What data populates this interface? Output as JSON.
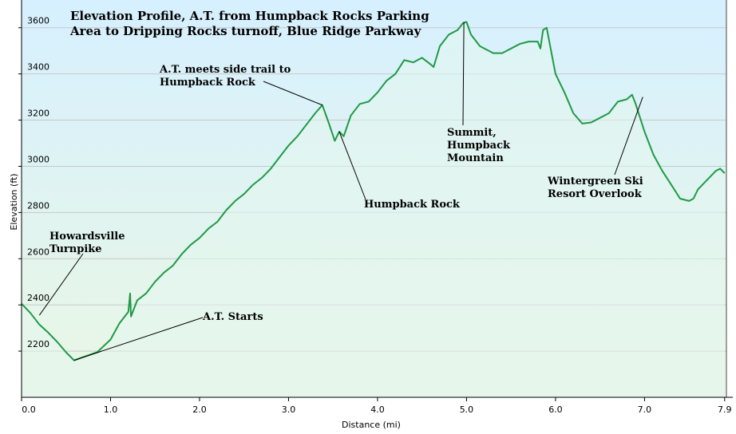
{
  "chart_data": {
    "type": "area",
    "title_lines": [
      "Elevation Profile, A.T. from Humpback Rocks Parking",
      "Area to Dripping Rocks turnoff, Blue Ridge Parkway"
    ],
    "xlabel": "Distance  (mi)",
    "ylabel": "Elevation (ft)",
    "xlim": [
      0,
      7.92
    ],
    "ylim": [
      2000,
      3720
    ],
    "x_ticks": [
      0,
      1,
      2,
      3,
      4,
      5,
      6,
      7,
      7.9
    ],
    "x_tick_labels": [
      "0.0",
      "1.0",
      "2.0",
      "3.0",
      "4.0",
      "5.0",
      "6.0",
      "7.0",
      "7.9"
    ],
    "y_ticks": [
      2200,
      2400,
      2600,
      2800,
      3000,
      3200,
      3400,
      3600
    ],
    "y_tick_labels": [
      "2200",
      "2400",
      "2600",
      "2800",
      "3000",
      "3200",
      "3400",
      "3600"
    ],
    "grid": "horizontal",
    "colors": {
      "line": "#1f9a45",
      "fill_top": "#d6f0ff",
      "fill_bottom": "#eaf7e4",
      "grid": "#c8c8c8"
    },
    "series": [
      {
        "name": "Elevation",
        "x": [
          0,
          0.1,
          0.2,
          0.3,
          0.4,
          0.5,
          0.59,
          0.7,
          0.85,
          1.0,
          1.1,
          1.2,
          1.22,
          1.23,
          1.3,
          1.4,
          1.5,
          1.6,
          1.7,
          1.8,
          1.9,
          2.0,
          2.1,
          2.2,
          2.3,
          2.4,
          2.5,
          2.6,
          2.7,
          2.8,
          2.9,
          3.0,
          3.1,
          3.2,
          3.3,
          3.38,
          3.45,
          3.52,
          3.57,
          3.62,
          3.7,
          3.8,
          3.9,
          4.0,
          4.1,
          4.2,
          4.3,
          4.4,
          4.5,
          4.6,
          4.63,
          4.7,
          4.8,
          4.9,
          4.96,
          5.0,
          5.05,
          5.15,
          5.3,
          5.4,
          5.5,
          5.6,
          5.7,
          5.8,
          5.83,
          5.86,
          5.9,
          6.0,
          6.1,
          6.2,
          6.3,
          6.4,
          6.5,
          6.6,
          6.7,
          6.8,
          6.86,
          6.9,
          7.0,
          7.1,
          7.2,
          7.3,
          7.4,
          7.5,
          7.55,
          7.6,
          7.7,
          7.8,
          7.85,
          7.9
        ],
        "values": [
          2405,
          2365,
          2315,
          2280,
          2240,
          2195,
          2160,
          2175,
          2195,
          2250,
          2320,
          2370,
          2450,
          2350,
          2420,
          2450,
          2500,
          2540,
          2570,
          2620,
          2660,
          2690,
          2730,
          2760,
          2810,
          2850,
          2880,
          2920,
          2950,
          2990,
          3040,
          3090,
          3130,
          3180,
          3230,
          3265,
          3190,
          3110,
          3150,
          3130,
          3220,
          3270,
          3280,
          3320,
          3370,
          3400,
          3460,
          3450,
          3470,
          3440,
          3430,
          3520,
          3570,
          3590,
          3620,
          3625,
          3570,
          3520,
          3490,
          3490,
          3510,
          3530,
          3540,
          3540,
          3510,
          3590,
          3600,
          3400,
          3320,
          3230,
          3185,
          3190,
          3210,
          3230,
          3280,
          3290,
          3310,
          3270,
          3150,
          3050,
          2980,
          2920,
          2860,
          2850,
          2860,
          2900,
          2940,
          2980,
          2990,
          2970
        ]
      }
    ],
    "annotations": [
      {
        "lines": [
          "Howardsville",
          "Turnpike"
        ],
        "x": 0.2,
        "y": 2355
      },
      {
        "lines": [
          "A.T. Starts"
        ],
        "x": 0.59,
        "y": 2160
      },
      {
        "lines": [
          "A.T. meets side trail to",
          "Humpback Rock"
        ],
        "x": 3.38,
        "y": 3265
      },
      {
        "lines": [
          "Humpback Rock"
        ],
        "x": 3.57,
        "y": 3150
      },
      {
        "lines": [
          "Summit,",
          "Humpback",
          "Mountain"
        ],
        "x": 4.97,
        "y": 3625
      },
      {
        "lines": [
          "Wintergreen Ski",
          "Resort Overlook"
        ],
        "x": 6.98,
        "y": 3300
      }
    ]
  }
}
